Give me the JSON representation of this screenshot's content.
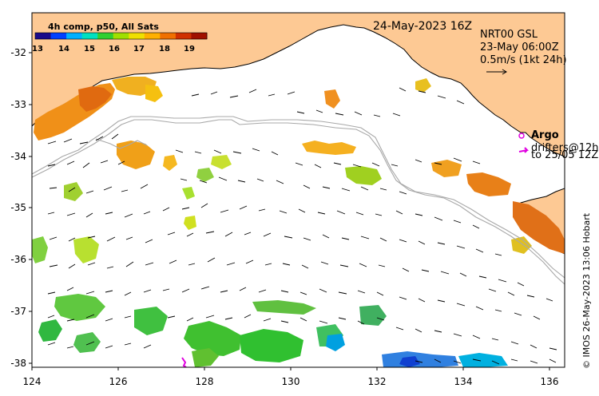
{
  "map": {
    "colorbar": {
      "title": "4h comp, p50, All Sats",
      "ticks": [
        "13",
        "14",
        "15",
        "16",
        "17",
        "18",
        "19"
      ],
      "colors": [
        "#1a0a8a",
        "#0040ff",
        "#00b0ff",
        "#00e0c0",
        "#30d030",
        "#a0e000",
        "#f0e000",
        "#ffb000",
        "#f07000",
        "#d03000",
        "#a01000"
      ]
    },
    "date": "24-May-2023 16Z",
    "product": "NRT00 GSL",
    "valid_time": "23-May 06:00Z",
    "scale_label": "0.5m/s (1kt 24h)",
    "argo_label": "Argo",
    "drifters_label": "drifters@12h",
    "drifters_range": "to 25/05 12Z",
    "credit": "© IMOS 26-May-2023 13:06 Hobart",
    "lat_ticks": [
      "-32",
      "-33",
      "-34",
      "-35",
      "-36",
      "-37",
      "-38"
    ],
    "lon_ticks": [
      "124",
      "126",
      "128",
      "130",
      "132",
      "134",
      "136"
    ],
    "colors": {
      "land": "#fdc994",
      "sea": "#ffffff",
      "contour": "#a8a8a8",
      "argo": "#e000e0"
    }
  }
}
